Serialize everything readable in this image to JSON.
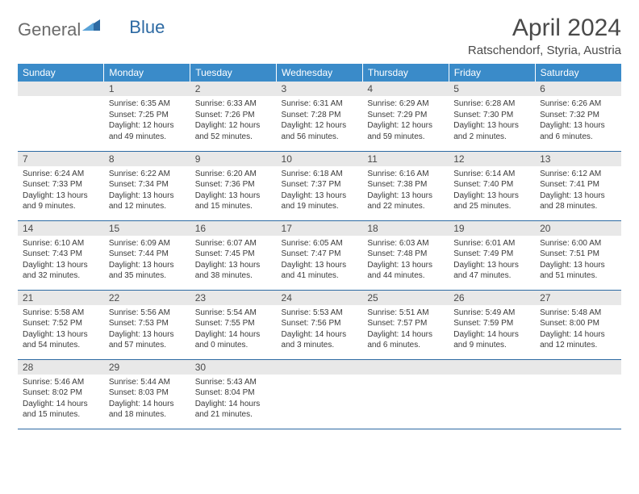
{
  "brand": {
    "part1": "General",
    "part2": "Blue"
  },
  "title": "April 2024",
  "location": "Ratschendorf, Styria, Austria",
  "colors": {
    "header_bg": "#3a8bc9",
    "border": "#2d6aa3",
    "daynum_bg": "#e8e8e8",
    "text": "#4a4a4a"
  },
  "weekdays": [
    "Sunday",
    "Monday",
    "Tuesday",
    "Wednesday",
    "Thursday",
    "Friday",
    "Saturday"
  ],
  "weeks": [
    [
      null,
      {
        "n": "1",
        "sr": "6:35 AM",
        "ss": "7:25 PM",
        "dl": "12 hours and 49 minutes."
      },
      {
        "n": "2",
        "sr": "6:33 AM",
        "ss": "7:26 PM",
        "dl": "12 hours and 52 minutes."
      },
      {
        "n": "3",
        "sr": "6:31 AM",
        "ss": "7:28 PM",
        "dl": "12 hours and 56 minutes."
      },
      {
        "n": "4",
        "sr": "6:29 AM",
        "ss": "7:29 PM",
        "dl": "12 hours and 59 minutes."
      },
      {
        "n": "5",
        "sr": "6:28 AM",
        "ss": "7:30 PM",
        "dl": "13 hours and 2 minutes."
      },
      {
        "n": "6",
        "sr": "6:26 AM",
        "ss": "7:32 PM",
        "dl": "13 hours and 6 minutes."
      }
    ],
    [
      {
        "n": "7",
        "sr": "6:24 AM",
        "ss": "7:33 PM",
        "dl": "13 hours and 9 minutes."
      },
      {
        "n": "8",
        "sr": "6:22 AM",
        "ss": "7:34 PM",
        "dl": "13 hours and 12 minutes."
      },
      {
        "n": "9",
        "sr": "6:20 AM",
        "ss": "7:36 PM",
        "dl": "13 hours and 15 minutes."
      },
      {
        "n": "10",
        "sr": "6:18 AM",
        "ss": "7:37 PM",
        "dl": "13 hours and 19 minutes."
      },
      {
        "n": "11",
        "sr": "6:16 AM",
        "ss": "7:38 PM",
        "dl": "13 hours and 22 minutes."
      },
      {
        "n": "12",
        "sr": "6:14 AM",
        "ss": "7:40 PM",
        "dl": "13 hours and 25 minutes."
      },
      {
        "n": "13",
        "sr": "6:12 AM",
        "ss": "7:41 PM",
        "dl": "13 hours and 28 minutes."
      }
    ],
    [
      {
        "n": "14",
        "sr": "6:10 AM",
        "ss": "7:43 PM",
        "dl": "13 hours and 32 minutes."
      },
      {
        "n": "15",
        "sr": "6:09 AM",
        "ss": "7:44 PM",
        "dl": "13 hours and 35 minutes."
      },
      {
        "n": "16",
        "sr": "6:07 AM",
        "ss": "7:45 PM",
        "dl": "13 hours and 38 minutes."
      },
      {
        "n": "17",
        "sr": "6:05 AM",
        "ss": "7:47 PM",
        "dl": "13 hours and 41 minutes."
      },
      {
        "n": "18",
        "sr": "6:03 AM",
        "ss": "7:48 PM",
        "dl": "13 hours and 44 minutes."
      },
      {
        "n": "19",
        "sr": "6:01 AM",
        "ss": "7:49 PM",
        "dl": "13 hours and 47 minutes."
      },
      {
        "n": "20",
        "sr": "6:00 AM",
        "ss": "7:51 PM",
        "dl": "13 hours and 51 minutes."
      }
    ],
    [
      {
        "n": "21",
        "sr": "5:58 AM",
        "ss": "7:52 PM",
        "dl": "13 hours and 54 minutes."
      },
      {
        "n": "22",
        "sr": "5:56 AM",
        "ss": "7:53 PM",
        "dl": "13 hours and 57 minutes."
      },
      {
        "n": "23",
        "sr": "5:54 AM",
        "ss": "7:55 PM",
        "dl": "14 hours and 0 minutes."
      },
      {
        "n": "24",
        "sr": "5:53 AM",
        "ss": "7:56 PM",
        "dl": "14 hours and 3 minutes."
      },
      {
        "n": "25",
        "sr": "5:51 AM",
        "ss": "7:57 PM",
        "dl": "14 hours and 6 minutes."
      },
      {
        "n": "26",
        "sr": "5:49 AM",
        "ss": "7:59 PM",
        "dl": "14 hours and 9 minutes."
      },
      {
        "n": "27",
        "sr": "5:48 AM",
        "ss": "8:00 PM",
        "dl": "14 hours and 12 minutes."
      }
    ],
    [
      {
        "n": "28",
        "sr": "5:46 AM",
        "ss": "8:02 PM",
        "dl": "14 hours and 15 minutes."
      },
      {
        "n": "29",
        "sr": "5:44 AM",
        "ss": "8:03 PM",
        "dl": "14 hours and 18 minutes."
      },
      {
        "n": "30",
        "sr": "5:43 AM",
        "ss": "8:04 PM",
        "dl": "14 hours and 21 minutes."
      },
      null,
      null,
      null,
      null
    ]
  ],
  "labels": {
    "sunrise": "Sunrise:",
    "sunset": "Sunset:",
    "daylight": "Daylight:"
  }
}
